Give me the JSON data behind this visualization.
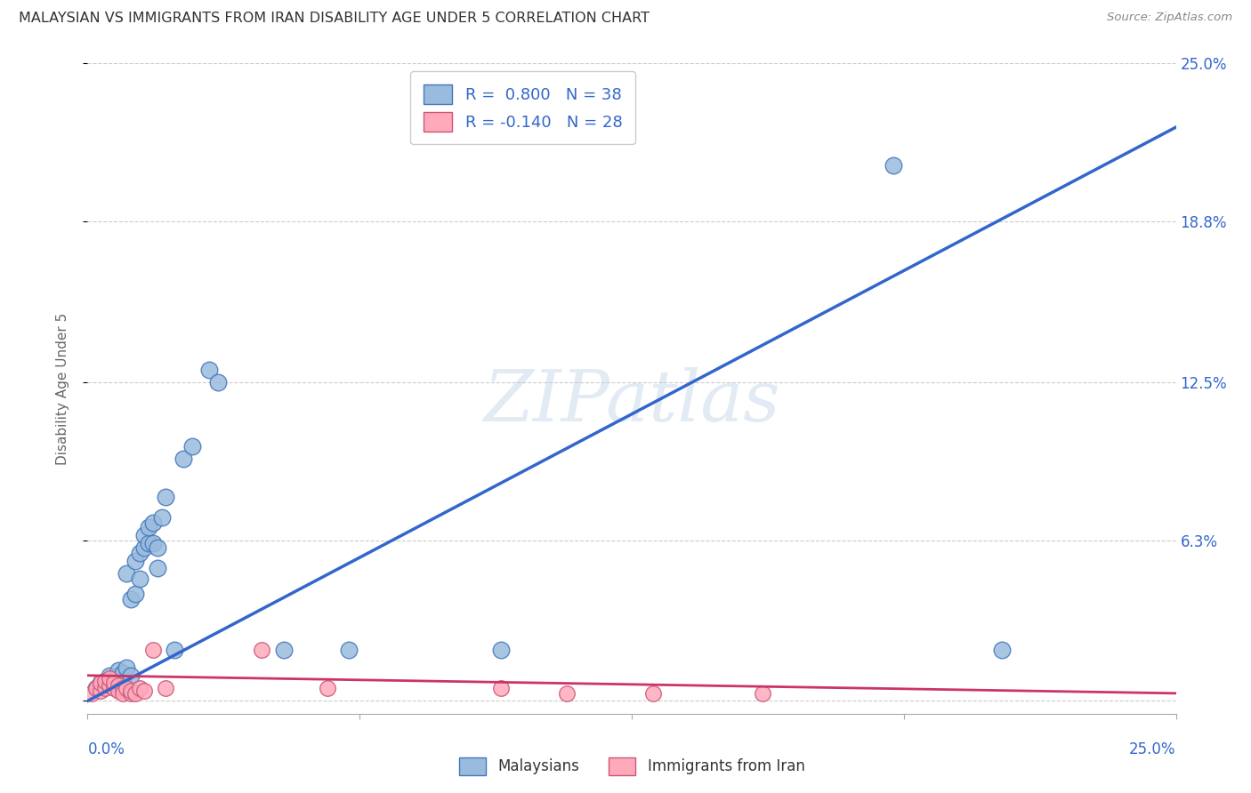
{
  "title": "MALAYSIAN VS IMMIGRANTS FROM IRAN DISABILITY AGE UNDER 5 CORRELATION CHART",
  "source": "Source: ZipAtlas.com",
  "ylabel": "Disability Age Under 5",
  "watermark": "ZIPatlas",
  "xlim": [
    0.0,
    0.25
  ],
  "ylim": [
    -0.005,
    0.25
  ],
  "yticks": [
    0.0,
    0.063,
    0.125,
    0.188,
    0.25
  ],
  "ytick_labels": [
    "",
    "6.3%",
    "12.5%",
    "18.8%",
    "25.0%"
  ],
  "xticks": [
    0.0,
    0.0625,
    0.125,
    0.1875,
    0.25
  ],
  "legend_r_blue": "R =  0.800",
  "legend_n_blue": "N = 38",
  "legend_r_pink": "R = -0.140",
  "legend_n_pink": "N = 28",
  "blue_fill": "#99BBDD",
  "blue_edge": "#4477BB",
  "pink_fill": "#FFAABB",
  "pink_edge": "#CC5577",
  "line_blue_color": "#3366CC",
  "line_pink_color": "#CC3366",
  "blue_scatter": [
    [
      0.002,
      0.005
    ],
    [
      0.003,
      0.007
    ],
    [
      0.004,
      0.006
    ],
    [
      0.005,
      0.008
    ],
    [
      0.005,
      0.01
    ],
    [
      0.006,
      0.009
    ],
    [
      0.007,
      0.01
    ],
    [
      0.007,
      0.012
    ],
    [
      0.008,
      0.008
    ],
    [
      0.008,
      0.011
    ],
    [
      0.009,
      0.013
    ],
    [
      0.009,
      0.05
    ],
    [
      0.01,
      0.01
    ],
    [
      0.01,
      0.04
    ],
    [
      0.011,
      0.042
    ],
    [
      0.011,
      0.055
    ],
    [
      0.012,
      0.058
    ],
    [
      0.012,
      0.048
    ],
    [
      0.013,
      0.06
    ],
    [
      0.013,
      0.065
    ],
    [
      0.014,
      0.062
    ],
    [
      0.014,
      0.068
    ],
    [
      0.015,
      0.07
    ],
    [
      0.015,
      0.062
    ],
    [
      0.016,
      0.052
    ],
    [
      0.016,
      0.06
    ],
    [
      0.017,
      0.072
    ],
    [
      0.018,
      0.08
    ],
    [
      0.02,
      0.02
    ],
    [
      0.022,
      0.095
    ],
    [
      0.024,
      0.1
    ],
    [
      0.028,
      0.13
    ],
    [
      0.03,
      0.125
    ],
    [
      0.045,
      0.02
    ],
    [
      0.06,
      0.02
    ],
    [
      0.095,
      0.02
    ],
    [
      0.185,
      0.21
    ],
    [
      0.21,
      0.02
    ]
  ],
  "pink_scatter": [
    [
      0.001,
      0.003
    ],
    [
      0.002,
      0.005
    ],
    [
      0.003,
      0.004
    ],
    [
      0.003,
      0.007
    ],
    [
      0.004,
      0.005
    ],
    [
      0.004,
      0.008
    ],
    [
      0.005,
      0.006
    ],
    [
      0.005,
      0.009
    ],
    [
      0.006,
      0.005
    ],
    [
      0.006,
      0.007
    ],
    [
      0.007,
      0.006
    ],
    [
      0.007,
      0.004
    ],
    [
      0.008,
      0.005
    ],
    [
      0.008,
      0.003
    ],
    [
      0.009,
      0.005
    ],
    [
      0.01,
      0.003
    ],
    [
      0.01,
      0.004
    ],
    [
      0.011,
      0.003
    ],
    [
      0.012,
      0.005
    ],
    [
      0.013,
      0.004
    ],
    [
      0.015,
      0.02
    ],
    [
      0.018,
      0.005
    ],
    [
      0.04,
      0.02
    ],
    [
      0.055,
      0.005
    ],
    [
      0.095,
      0.005
    ],
    [
      0.11,
      0.003
    ],
    [
      0.13,
      0.003
    ],
    [
      0.155,
      0.003
    ]
  ],
  "blue_line_x": [
    0.0,
    0.25
  ],
  "blue_line_y": [
    0.0,
    0.225
  ],
  "pink_line_x": [
    0.0,
    0.25
  ],
  "pink_line_y": [
    0.01,
    0.003
  ],
  "background_color": "#FFFFFF",
  "grid_color": "#CCCCCC",
  "title_color": "#333333",
  "axis_label_color": "#666666",
  "right_tick_color": "#3366CC",
  "bottom_tick_color": "#3366CC"
}
